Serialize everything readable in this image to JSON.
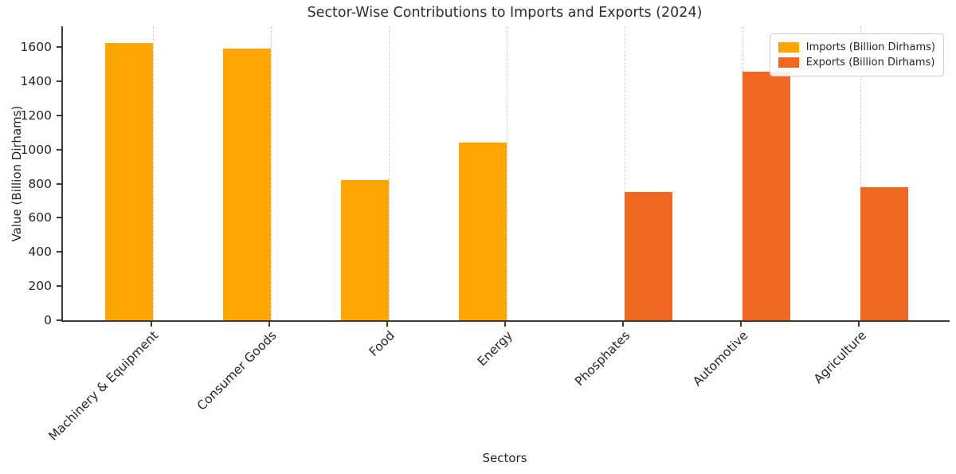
{
  "chart_data": {
    "type": "bar",
    "title": "Sector-Wise Contributions to Imports and Exports (2024)",
    "xlabel": "Sectors",
    "ylabel": "Value (Billion Dirhams)",
    "categories": [
      "Machinery & Equipment",
      "Consumer Goods",
      "Food",
      "Energy",
      "Phosphates",
      "Automotive",
      "Agriculture"
    ],
    "series": [
      {
        "name": "Imports (Billion Dirhams)",
        "color": "#FFA500",
        "values": [
          1625,
          1590,
          820,
          1040,
          0,
          0,
          0
        ]
      },
      {
        "name": "Exports (Billion Dirhams)",
        "color": "#F0671F",
        "values": [
          0,
          0,
          0,
          0,
          750,
          1455,
          780
        ]
      }
    ],
    "ylim": [
      0,
      1700
    ],
    "yticks": [
      0,
      200,
      400,
      600,
      800,
      1000,
      1200,
      1400,
      1600
    ],
    "grid": "vertical-dashed",
    "legend_position": "upper right",
    "background_color": "#ffffff",
    "axis_color": "#3b3b3b",
    "text_color": "#262626"
  }
}
